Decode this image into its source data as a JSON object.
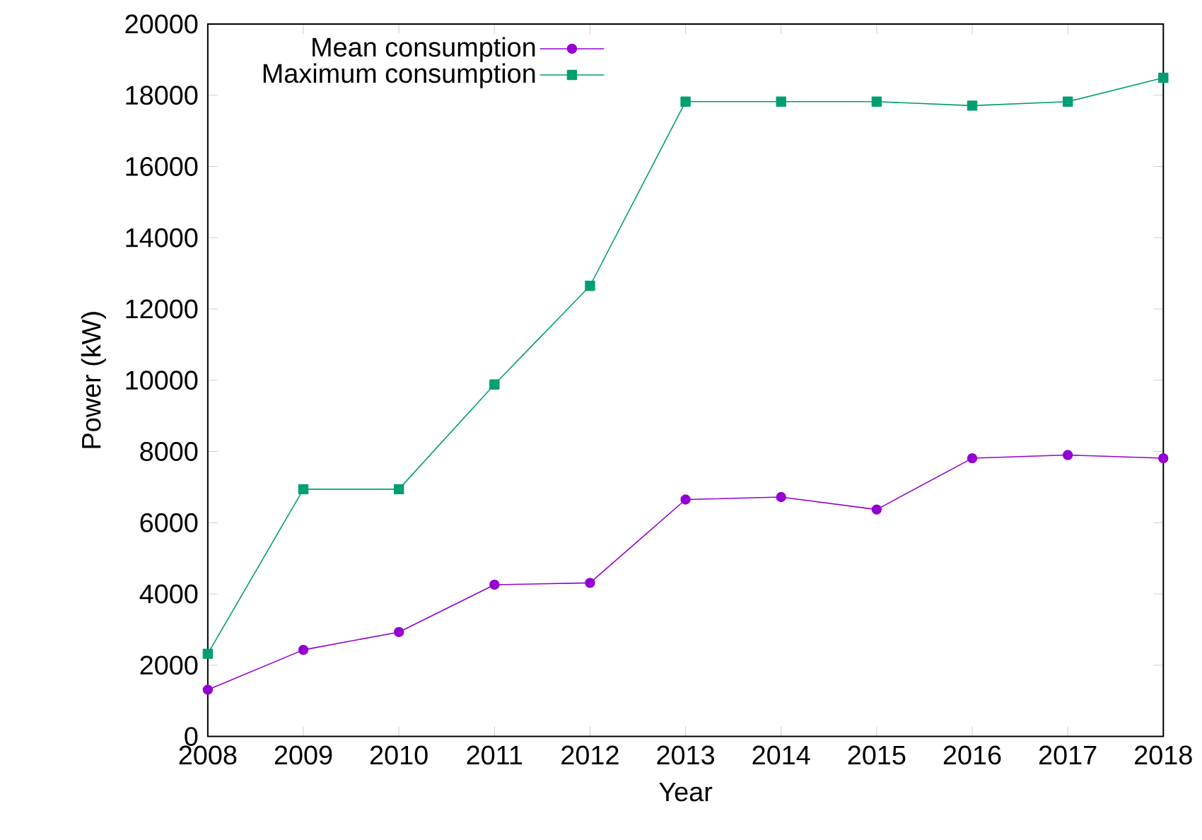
{
  "chart_data": {
    "type": "line",
    "xlabel": "Year",
    "ylabel": "Power (kW)",
    "x": [
      2008,
      2009,
      2010,
      2011,
      2012,
      2013,
      2014,
      2015,
      2016,
      2017,
      2018
    ],
    "series": [
      {
        "name": "Mean consumption",
        "color": "#9400d3",
        "marker": "circle",
        "values": [
          1310,
          2430,
          2930,
          4260,
          4310,
          6650,
          6720,
          6370,
          7810,
          7900,
          7810
        ]
      },
      {
        "name": "Maximum consumption",
        "color": "#009e73",
        "marker": "square",
        "values": [
          2320,
          6940,
          6940,
          9880,
          12650,
          17820,
          17820,
          17820,
          17710,
          17820,
          18490
        ]
      }
    ],
    "xlim": [
      2008,
      2018
    ],
    "ylim": [
      0,
      20000
    ],
    "xticks": [
      2008,
      2009,
      2010,
      2011,
      2012,
      2013,
      2014,
      2015,
      2016,
      2017,
      2018
    ],
    "yticks": [
      0,
      2000,
      4000,
      6000,
      8000,
      10000,
      12000,
      14000,
      16000,
      18000,
      20000
    ],
    "grid": false,
    "legend": "top left",
    "line_style": "solid"
  }
}
